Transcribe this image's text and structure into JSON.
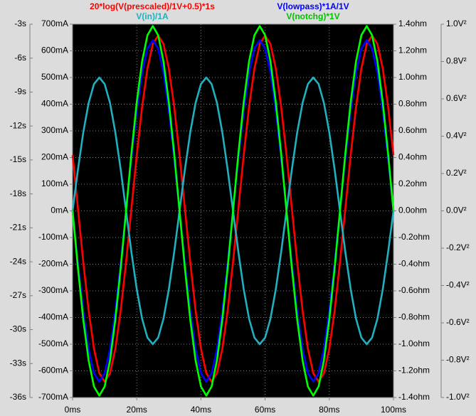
{
  "chart_data": {
    "type": "line",
    "x": [
      0,
      1.67,
      3.33,
      5,
      6.67,
      8.33,
      10,
      11.67,
      13.33,
      15,
      16.67,
      18.33,
      20,
      21.67,
      23.33,
      25,
      26.67,
      28.33,
      30,
      31.67,
      33.33,
      35,
      36.67,
      38.33,
      40,
      41.67,
      43.33,
      45,
      46.67,
      48.33,
      50,
      51.67,
      53.33,
      55,
      56.67,
      58.33,
      60,
      61.67,
      63.33,
      65,
      66.67,
      68.33,
      70,
      71.67,
      73.33,
      75,
      76.67,
      78.33,
      80,
      81.67,
      83.33,
      85,
      86.67,
      88.33,
      90,
      91.67,
      93.33,
      95,
      96.67,
      98.33,
      100
    ],
    "xlim": [
      0,
      100
    ],
    "xticks": [
      {
        "value": 0,
        "label": "0ms"
      },
      {
        "value": 20,
        "label": "20ms"
      },
      {
        "value": 40,
        "label": "40ms"
      },
      {
        "value": 60,
        "label": "60ms"
      },
      {
        "value": 80,
        "label": "80ms"
      },
      {
        "value": 100,
        "label": "100ms"
      }
    ],
    "ylim": [
      -700,
      700
    ],
    "yticks": [
      {
        "value": 700,
        "label": "700mA"
      },
      {
        "value": 600,
        "label": "600mA"
      },
      {
        "value": 500,
        "label": "500mA"
      },
      {
        "value": 400,
        "label": "400mA"
      },
      {
        "value": 300,
        "label": "300mA"
      },
      {
        "value": 200,
        "label": "200mA"
      },
      {
        "value": 100,
        "label": "100mA"
      },
      {
        "value": 0,
        "label": "0mA"
      },
      {
        "value": -100,
        "label": "-100mA"
      },
      {
        "value": -200,
        "label": "-200mA"
      },
      {
        "value": -300,
        "label": "-300mA"
      },
      {
        "value": -400,
        "label": "-400mA"
      },
      {
        "value": -500,
        "label": "-500mA"
      },
      {
        "value": -600,
        "label": "-600mA"
      },
      {
        "value": -700,
        "label": "-700mA"
      }
    ],
    "y2lim": [
      -1.4,
      1.4
    ],
    "y2ticks": [
      {
        "value": 1.4,
        "label": "1.4ohm"
      },
      {
        "value": 1.2,
        "label": "1.2ohm"
      },
      {
        "value": 1.0,
        "label": "1.0ohm"
      },
      {
        "value": 0.8,
        "label": "0.8ohm"
      },
      {
        "value": 0.6,
        "label": "0.6ohm"
      },
      {
        "value": 0.4,
        "label": "0.4ohm"
      },
      {
        "value": 0.2,
        "label": "0.2ohm"
      },
      {
        "value": 0,
        "label": "0.0ohm"
      },
      {
        "value": -0.2,
        "label": "-0.2ohm"
      },
      {
        "value": -0.4,
        "label": "-0.4ohm"
      },
      {
        "value": -0.6,
        "label": "-0.6ohm"
      },
      {
        "value": -0.8,
        "label": "-0.8ohm"
      },
      {
        "value": -1.0,
        "label": "-1.0ohm"
      },
      {
        "value": -1.2,
        "label": "-1.2ohm"
      },
      {
        "value": -1.4,
        "label": "-1.4ohm"
      }
    ],
    "y3lim": [
      -36,
      -3
    ],
    "y3ticks": [
      {
        "value": -3,
        "label": "-3s"
      },
      {
        "value": -6,
        "label": "-6s"
      },
      {
        "value": -9,
        "label": "-9s"
      },
      {
        "value": -12,
        "label": "-12s"
      },
      {
        "value": -15,
        "label": "-15s"
      },
      {
        "value": -18,
        "label": "-18s"
      },
      {
        "value": -21,
        "label": "-21s"
      },
      {
        "value": -24,
        "label": "-24s"
      },
      {
        "value": -27,
        "label": "-27s"
      },
      {
        "value": -30,
        "label": "-30s"
      },
      {
        "value": -33,
        "label": "-33s"
      },
      {
        "value": -36,
        "label": "-36s"
      }
    ],
    "y4lim": [
      -1.0,
      1.0
    ],
    "y4ticks": [
      {
        "value": 1.0,
        "label": "1.0V²"
      },
      {
        "value": 0.8,
        "label": "0.8V²"
      },
      {
        "value": 0.6,
        "label": "0.6V²"
      },
      {
        "value": 0.4,
        "label": "0.4V²"
      },
      {
        "value": 0.2,
        "label": "0.2V²"
      },
      {
        "value": 0,
        "label": "0.0V²"
      },
      {
        "value": -0.2,
        "label": "-0.2V²"
      },
      {
        "value": -0.4,
        "label": "-0.4V²"
      },
      {
        "value": -0.6,
        "label": "-0.6V²"
      },
      {
        "value": -0.8,
        "label": "-0.8V²"
      },
      {
        "value": -1.0,
        "label": "-1.0V²"
      }
    ],
    "grid": true,
    "series": [
      {
        "name": "20*log(V(prescaled)/1V+0.5)*1s",
        "color": "#ff0000",
        "axis": "y3",
        "values": [
          -14.57,
          -19.3,
          -24.03,
          -28.3,
          -31.68,
          -33.85,
          -34.6,
          -33.85,
          -31.68,
          -28.3,
          -24.03,
          -19.3,
          -14.57,
          -10.3,
          -6.92,
          -4.75,
          -4.0,
          -4.75,
          -6.92,
          -10.3,
          -14.57,
          -19.3,
          -24.03,
          -28.3,
          -31.68,
          -33.85,
          -34.6,
          -33.85,
          -31.68,
          -28.3,
          -24.03,
          -19.3,
          -14.57,
          -10.3,
          -6.92,
          -4.75,
          -4.0,
          -4.75,
          -6.92,
          -10.3,
          -14.57,
          -19.3,
          -24.03,
          -28.3,
          -31.68,
          -33.85,
          -34.6,
          -33.85,
          -31.68,
          -28.3,
          -24.03,
          -19.3,
          -14.57,
          -10.3,
          -6.92,
          -4.75,
          -4.0,
          -4.75,
          -6.92,
          -10.3,
          -14.57
        ]
      },
      {
        "name": "V(lowpass)*1A/1V",
        "color": "#0000ff",
        "axis": "y",
        "values": [
          0,
          -198,
          -376,
          -518,
          -609,
          -640,
          -609,
          -518,
          -376,
          -198,
          0,
          198,
          376,
          518,
          609,
          640,
          609,
          518,
          376,
          198,
          0,
          -198,
          -376,
          -518,
          -609,
          -640,
          -609,
          -518,
          -376,
          -198,
          0,
          198,
          376,
          518,
          609,
          640,
          609,
          518,
          376,
          198,
          0,
          -198,
          -376,
          -518,
          -609,
          -640,
          -609,
          -518,
          -376,
          -198,
          0,
          198,
          376,
          518,
          609,
          640,
          609,
          518,
          376,
          198,
          0
        ]
      },
      {
        "name": "V(in)/1A",
        "color": "#20b0c0",
        "axis": "y2",
        "values": [
          0,
          0.309,
          0.588,
          0.809,
          0.951,
          1,
          0.951,
          0.809,
          0.588,
          0.309,
          0,
          -0.309,
          -0.588,
          -0.809,
          -0.951,
          -1,
          -0.951,
          -0.809,
          -0.588,
          -0.309,
          0,
          0.309,
          0.588,
          0.809,
          0.951,
          1,
          0.951,
          0.809,
          0.588,
          0.309,
          0,
          -0.309,
          -0.588,
          -0.809,
          -0.951,
          -1,
          -0.951,
          -0.809,
          -0.588,
          -0.309,
          0,
          0.309,
          0.588,
          0.809,
          0.951,
          1,
          0.951,
          0.809,
          0.588,
          0.309,
          0,
          -0.309,
          -0.588,
          -0.809,
          -0.951,
          -1,
          -0.951,
          -0.809,
          -0.588,
          -0.309,
          0
        ]
      },
      {
        "name": "V(notchg)*1V",
        "color": "#00ff00",
        "axis": "y4",
        "values": [
          0,
          -0.306,
          -0.582,
          -0.801,
          -0.941,
          -0.99,
          -0.941,
          -0.801,
          -0.582,
          -0.306,
          0,
          0.306,
          0.582,
          0.801,
          0.941,
          0.99,
          0.941,
          0.801,
          0.582,
          0.306,
          0,
          -0.306,
          -0.582,
          -0.801,
          -0.941,
          -0.99,
          -0.941,
          -0.801,
          -0.582,
          -0.306,
          0,
          0.306,
          0.582,
          0.801,
          0.941,
          0.99,
          0.941,
          0.801,
          0.582,
          0.306,
          0,
          -0.306,
          -0.582,
          -0.801,
          -0.941,
          -0.99,
          -0.941,
          -0.801,
          -0.582,
          -0.306,
          0,
          0.306,
          0.582,
          0.801,
          0.941,
          0.99,
          0.941,
          0.801,
          0.582,
          0.306,
          0
        ]
      }
    ]
  }
}
